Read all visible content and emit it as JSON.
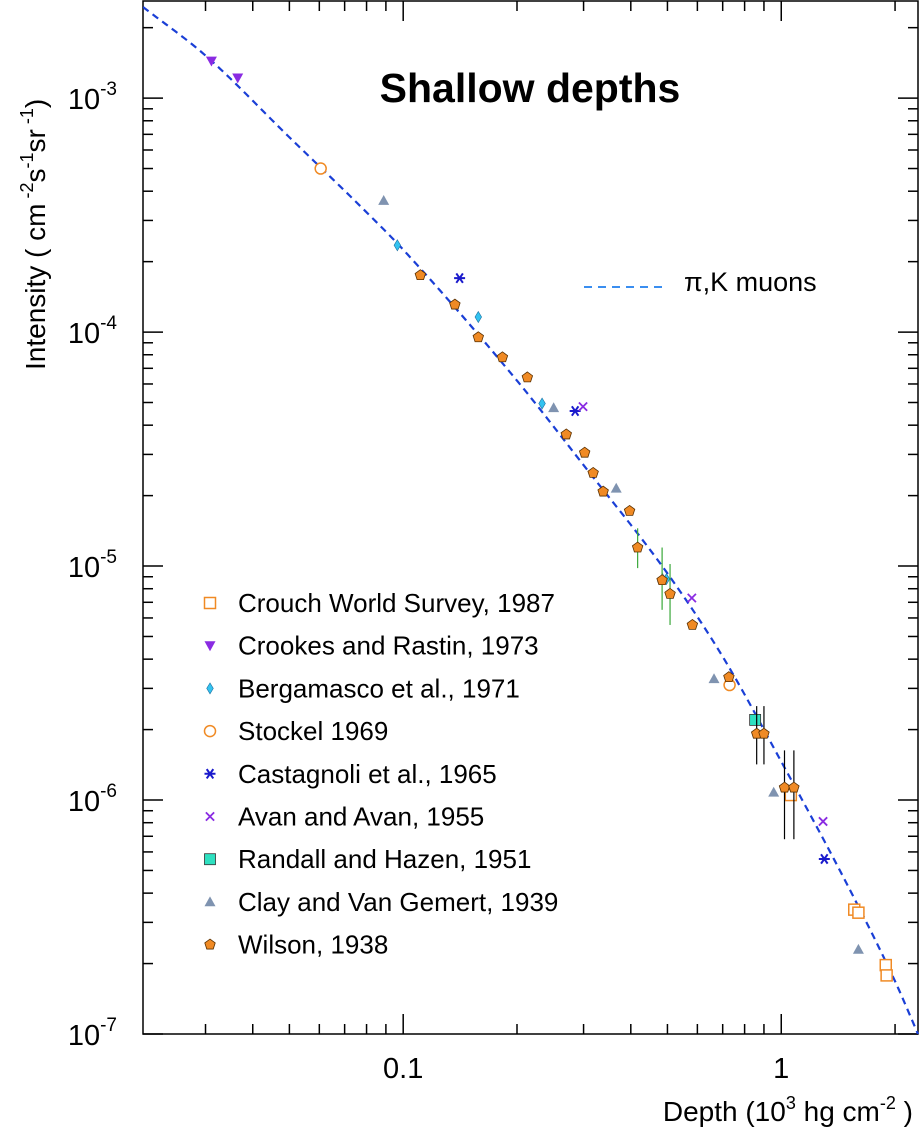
{
  "chart_data": {
    "type": "scatter",
    "title": "Shallow depths",
    "xscale": "log",
    "yscale": "log",
    "xlim": [
      0.0205,
      2.3
    ],
    "ylim": [
      1e-07,
      0.0026
    ],
    "xlabel": "Depth (10 hg cm  )",
    "xlabel_parts": {
      "pre": "Depth (10",
      "exp1": "3",
      "mid": " hg cm",
      "exp2": "-2",
      "post": " )"
    },
    "ylabel": "Intensity  ( cm  s  sr  )",
    "ylabel_parts": {
      "pre": "Intensity  ( cm",
      "e1": " -2",
      "m1": "s",
      "e2": "-1",
      "m2": "sr",
      "e3": " -1",
      "post": ")"
    },
    "x_ticks": [
      {
        "value": 0.1,
        "label": "0.1"
      },
      {
        "value": 1,
        "label": "1"
      }
    ],
    "y_ticks": [
      {
        "value": 0.001,
        "base": "10",
        "exp": "-3"
      },
      {
        "value": 0.0001,
        "base": "10",
        "exp": "-4"
      },
      {
        "value": 1e-05,
        "base": "10",
        "exp": "-5"
      },
      {
        "value": 1e-06,
        "base": "10",
        "exp": "-6"
      },
      {
        "value": 1e-07,
        "base": "10",
        "exp": "-7"
      }
    ],
    "legend_position": "bottom-left",
    "model": {
      "name": "π,K muons",
      "style": "dashed",
      "color": "#1a3fd6",
      "legend_color": "#3a8ef0",
      "x": [
        0.0205,
        0.03,
        0.05,
        0.08,
        0.1,
        0.2,
        0.3,
        0.5,
        0.7,
        1.0,
        1.5,
        2.0,
        2.3
      ],
      "y": [
        0.00245,
        0.00152,
        0.00068,
        0.000325,
        0.000225,
        6.2e-05,
        2.7e-05,
        9.3e-06,
        4.1e-06,
        1.46e-06,
        4.3e-07,
        1.68e-07,
        1e-07
      ]
    },
    "series": [
      {
        "name": "Crouch World Survey, 1987",
        "marker": "square-open",
        "color": "#f08a24",
        "x": [
          1.06,
          1.56,
          1.6,
          1.89,
          1.9
        ],
        "y": [
          1.05e-06,
          3.4e-07,
          3.3e-07,
          1.97e-07,
          1.78e-07
        ]
      },
      {
        "name": "Crookes and Rastin, 1973",
        "marker": "triangle-down",
        "color": "#8a2be2",
        "x": [
          0.0311,
          0.0365
        ],
        "y": [
          0.00144,
          0.00122
        ]
      },
      {
        "name": "Bergamasco et al., 1971",
        "marker": "diamond",
        "color": "#33c3f0",
        "x": [
          0.0965,
          0.158,
          0.233,
          0.497
        ],
        "y": [
          0.000235,
          0.000116,
          4.95e-05,
          8.8e-06
        ]
      },
      {
        "name": "Stockel  1969",
        "marker": "circle-open",
        "color": "#f08a24",
        "x": [
          0.0605,
          0.73
        ],
        "y": [
          0.0005,
          3.1e-06
        ]
      },
      {
        "name": "Castagnoli et al., 1965",
        "marker": "asterisk",
        "color": "#1a1acc",
        "x": [
          0.141,
          0.285,
          1.3
        ],
        "y": [
          0.00017,
          4.6e-05,
          5.6e-07
        ]
      },
      {
        "name": "Avan and Avan, 1955",
        "marker": "cross",
        "color": "#8a2be2",
        "x": [
          0.299,
          0.58,
          1.29
        ],
        "y": [
          4.8e-05,
          7.3e-06,
          8.1e-07
        ]
      },
      {
        "name": "Randall and Hazen, 1951",
        "marker": "square",
        "color": "#2ee0c0",
        "x": [
          0.853
        ],
        "y": [
          2.2e-06
        ]
      },
      {
        "name": "Clay and Van Gemert, 1939",
        "marker": "triangle-up",
        "color": "#7f93b0",
        "x": [
          0.0888,
          0.25,
          0.366,
          0.485,
          0.664,
          0.955,
          1.6
        ],
        "y": [
          0.000365,
          4.75e-05,
          2.15e-05,
          8.9e-06,
          3.3e-06,
          1.08e-06,
          2.3e-07
        ]
      },
      {
        "name": "Wilson, 1938",
        "marker": "pentagon",
        "color": "#f08a24",
        "x": [
          0.111,
          0.137,
          0.158,
          0.183,
          0.213,
          0.27,
          0.302,
          0.318,
          0.338,
          0.397,
          0.417,
          0.484,
          0.508,
          0.582,
          0.727,
          0.861,
          0.9,
          1.02,
          1.08
        ],
        "y": [
          0.000175,
          0.000131,
          9.5e-05,
          7.8e-05,
          6.4e-05,
          3.65e-05,
          3.05e-05,
          2.5e-05,
          2.08e-05,
          1.72e-05,
          1.2e-05,
          8.7e-06,
          7.6e-06,
          5.6e-06,
          3.35e-06,
          1.92e-06,
          1.92e-06,
          1.13e-06,
          1.13e-06
        ],
        "err_lo": [
          0,
          0,
          0,
          0,
          0,
          0,
          0,
          0,
          0,
          0,
          2.2e-06,
          2.2e-06,
          2e-06,
          0,
          0,
          5e-07,
          5e-07,
          4.5e-07,
          4.5e-07
        ],
        "err_hi": [
          0,
          0,
          0,
          0,
          0,
          0,
          0,
          0,
          0,
          0,
          2.5e-06,
          3.3e-06,
          2.6e-06,
          0,
          0,
          6e-07,
          6e-07,
          5e-07,
          5e-07
        ],
        "err_color": [
          "",
          "",
          "",
          "",
          "",
          "",
          "",
          "",
          "",
          "",
          "#3aa83a",
          "#3aa83a",
          "#3aa83a",
          "",
          "",
          "#000000",
          "#000000",
          "#000000",
          "#000000"
        ]
      }
    ]
  }
}
